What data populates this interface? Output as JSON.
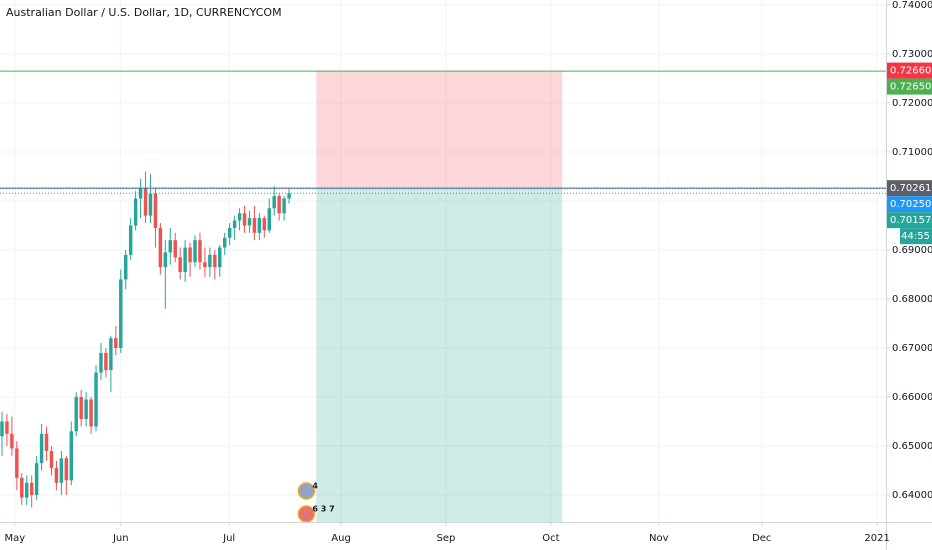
{
  "chart_data": {
    "type": "candlestick",
    "title": "Australian Dollar / U.S. Dollar, 1D, CURRENCYCOM",
    "up_color": "#26a69a",
    "down_color": "#ef5350",
    "grid": true,
    "xlim": [
      -0.4,
      178.6
    ],
    "xticks": [
      {
        "value": 2.6,
        "label": "May"
      },
      {
        "value": 24,
        "label": "Jun"
      },
      {
        "value": 45.9,
        "label": "Jul"
      },
      {
        "value": 68.5,
        "label": "Aug"
      },
      {
        "value": 89.7,
        "label": "Sep"
      },
      {
        "value": 110.9,
        "label": "Oct"
      },
      {
        "value": 132.7,
        "label": "Nov"
      },
      {
        "value": 153.5,
        "label": "Dec"
      },
      {
        "value": 176.8,
        "label": "2021"
      }
    ],
    "ylim": [
      0.741,
      0.6345
    ],
    "yticks": [
      {
        "value": 0.74,
        "label": "0.74000"
      },
      {
        "value": 0.73,
        "label": "0.73000"
      },
      {
        "value": 0.72,
        "label": "0.72000"
      },
      {
        "value": 0.71,
        "label": "0.71000"
      },
      {
        "value": 0.7,
        "label": "0.70000"
      },
      {
        "value": 0.69,
        "label": "0.69000"
      },
      {
        "value": 0.68,
        "label": "0.68000"
      },
      {
        "value": 0.67,
        "label": "0.67000"
      },
      {
        "value": 0.66,
        "label": "0.66000"
      },
      {
        "value": 0.65,
        "label": "0.65000"
      },
      {
        "value": 0.64,
        "label": "0.64000"
      }
    ],
    "candles": {
      "open": [
        0.652,
        0.655,
        0.6525,
        0.6495,
        0.6435,
        0.6395,
        0.6425,
        0.64,
        0.6465,
        0.6525,
        0.649,
        0.6455,
        0.6425,
        0.6475,
        0.643,
        0.653,
        0.66,
        0.6555,
        0.6595,
        0.654,
        0.665,
        0.669,
        0.6655,
        0.672,
        0.67,
        0.684,
        0.689,
        0.695,
        0.7005,
        0.7025,
        0.697,
        0.7015,
        0.6945,
        0.6865,
        0.6895,
        0.692,
        0.6885,
        0.6855,
        0.6905,
        0.6875,
        0.692,
        0.6875,
        0.6865,
        0.689,
        0.6865,
        0.6905,
        0.6925,
        0.6945,
        0.696,
        0.6975,
        0.695,
        0.6965,
        0.6935,
        0.6965,
        0.694,
        0.6985,
        0.701,
        0.6975,
        0.7005
      ],
      "high": [
        0.657,
        0.6565,
        0.656,
        0.651,
        0.6445,
        0.644,
        0.644,
        0.648,
        0.6545,
        0.654,
        0.65,
        0.647,
        0.649,
        0.648,
        0.655,
        0.661,
        0.6615,
        0.661,
        0.66,
        0.6665,
        0.671,
        0.67,
        0.6725,
        0.6745,
        0.686,
        0.69,
        0.6965,
        0.702,
        0.7045,
        0.706,
        0.7055,
        0.7025,
        0.6955,
        0.692,
        0.6945,
        0.6935,
        0.6905,
        0.692,
        0.6915,
        0.693,
        0.6935,
        0.6905,
        0.6905,
        0.69,
        0.691,
        0.6935,
        0.6955,
        0.697,
        0.6985,
        0.699,
        0.698,
        0.699,
        0.6975,
        0.697,
        0.7005,
        0.703,
        0.7015,
        0.701,
        0.7025
      ],
      "low": [
        0.648,
        0.65,
        0.648,
        0.641,
        0.638,
        0.638,
        0.6375,
        0.639,
        0.645,
        0.647,
        0.644,
        0.641,
        0.64,
        0.64,
        0.642,
        0.652,
        0.654,
        0.654,
        0.6525,
        0.653,
        0.6635,
        0.664,
        0.661,
        0.6685,
        0.669,
        0.682,
        0.688,
        0.694,
        0.6965,
        0.6955,
        0.6955,
        0.6905,
        0.685,
        0.678,
        0.687,
        0.6875,
        0.684,
        0.6835,
        0.6845,
        0.6865,
        0.686,
        0.6845,
        0.6845,
        0.684,
        0.6845,
        0.689,
        0.691,
        0.692,
        0.694,
        0.6935,
        0.6935,
        0.692,
        0.692,
        0.6925,
        0.6935,
        0.697,
        0.696,
        0.696,
        0.6995
      ],
      "close": [
        0.655,
        0.6525,
        0.6495,
        0.6435,
        0.6395,
        0.6425,
        0.64,
        0.6465,
        0.6525,
        0.649,
        0.6455,
        0.6425,
        0.6475,
        0.643,
        0.653,
        0.66,
        0.6555,
        0.6595,
        0.654,
        0.665,
        0.669,
        0.6655,
        0.672,
        0.67,
        0.684,
        0.689,
        0.695,
        0.7005,
        0.7025,
        0.697,
        0.7015,
        0.6945,
        0.6865,
        0.6895,
        0.692,
        0.6885,
        0.6855,
        0.6905,
        0.6875,
        0.692,
        0.6875,
        0.6865,
        0.689,
        0.6865,
        0.6905,
        0.6925,
        0.6945,
        0.696,
        0.6975,
        0.695,
        0.6965,
        0.6935,
        0.6965,
        0.694,
        0.6985,
        0.701,
        0.6975,
        0.7005,
        0.70157
      ]
    },
    "position_tool": {
      "entry": 0.70261,
      "stop": 0.7266,
      "start_bar": 63.5,
      "end_bar": 113.2,
      "stop_color": "#f23645",
      "target_color": "#089981"
    },
    "price_lines": [
      {
        "value": 0.7266,
        "label": "0.72660",
        "color": "#f23645",
        "line": "none"
      },
      {
        "value": 0.7265,
        "label": "0.72650",
        "color": "#4caf50",
        "line": "solid"
      },
      {
        "value": 0.70261,
        "label": "0.70261",
        "color": "#5d606b",
        "line": "solid"
      },
      {
        "value": 0.7025,
        "label": "0.70250",
        "color": "#2196f3",
        "line": "dotted"
      },
      {
        "value": 0.70157,
        "label": "0.70157",
        "color": "#26a69a",
        "line": "dotted"
      }
    ],
    "countdown": "44:55",
    "events": [
      {
        "bar": 61.5,
        "label": "4"
      },
      {
        "bar": 61.5,
        "label": "6 3 7"
      }
    ]
  }
}
